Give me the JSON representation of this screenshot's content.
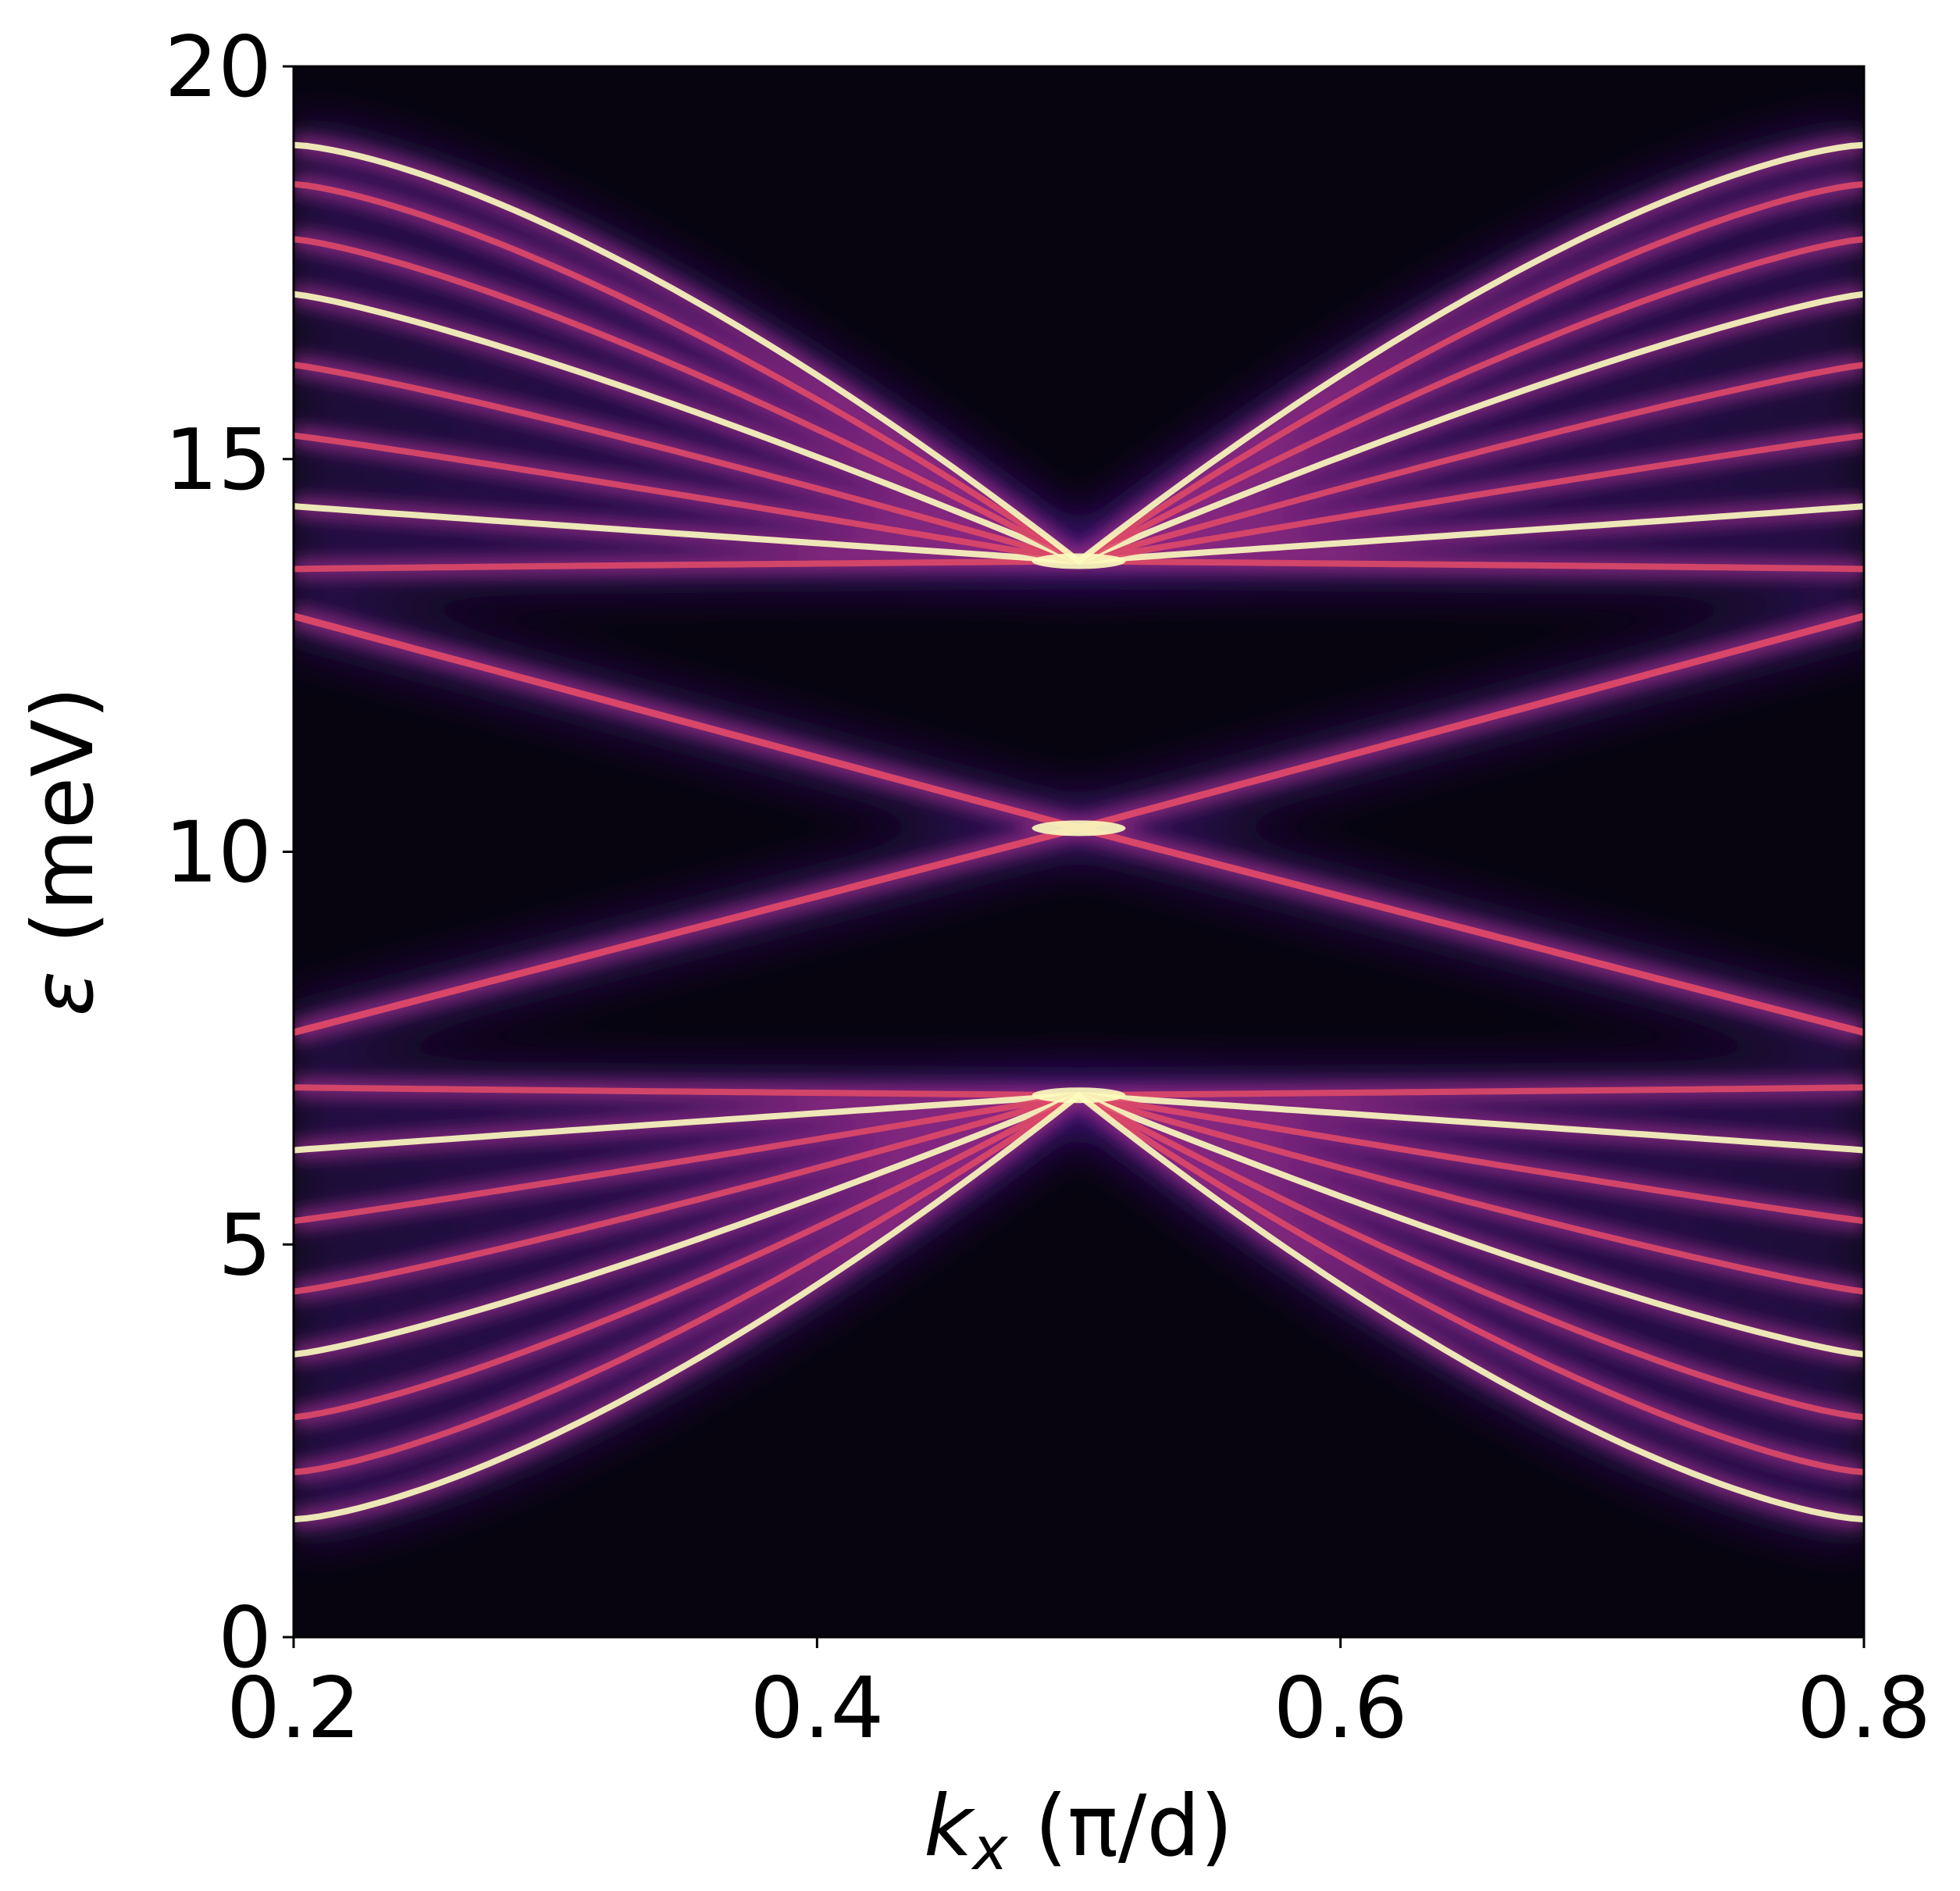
{
  "chart_data": {
    "type": "heatmap",
    "title": "",
    "xlabel": "k_x (π/d)",
    "ylabel": "ε (meV)",
    "xlim": [
      0.2,
      0.8
    ],
    "ylim": [
      0,
      20
    ],
    "x_ticks": [
      0.2,
      0.4,
      0.6,
      0.8
    ],
    "y_ticks": [
      0,
      5,
      10,
      15,
      20
    ],
    "x_tick_labels": [
      "0.2",
      "0.4",
      "0.6",
      "0.8"
    ],
    "y_tick_labels": [
      "0",
      "5",
      "10",
      "15",
      "20"
    ],
    "colormap": "magma",
    "colorbar": false,
    "grid": false,
    "crossing_points": [
      {
        "kx": 0.5,
        "energy": 13.7
      },
      {
        "kx": 0.5,
        "energy": 10.3
      },
      {
        "kx": 0.5,
        "energy": 6.9
      }
    ],
    "upper_bands_at_kx_0_2": [
      13.0,
      13.6,
      14.4,
      15.3,
      16.2,
      17.1,
      17.8,
      18.5,
      19.0
    ],
    "lower_bands_at_kx_0_2": [
      7.7,
      7.0,
      6.2,
      5.3,
      4.4,
      3.6,
      2.8,
      2.1,
      1.5
    ],
    "colors": {
      "background": "#000004",
      "low": "#3b0f70",
      "mid": "#8c2981",
      "high": "#de4968",
      "peak": "#fcfdbf"
    }
  },
  "labels": {
    "xlabel_symbol": "k",
    "xlabel_sub": "x",
    "xlabel_rest": " (π/d)",
    "ylabel_symbol": "ε",
    "ylabel_rest": " (meV)"
  }
}
